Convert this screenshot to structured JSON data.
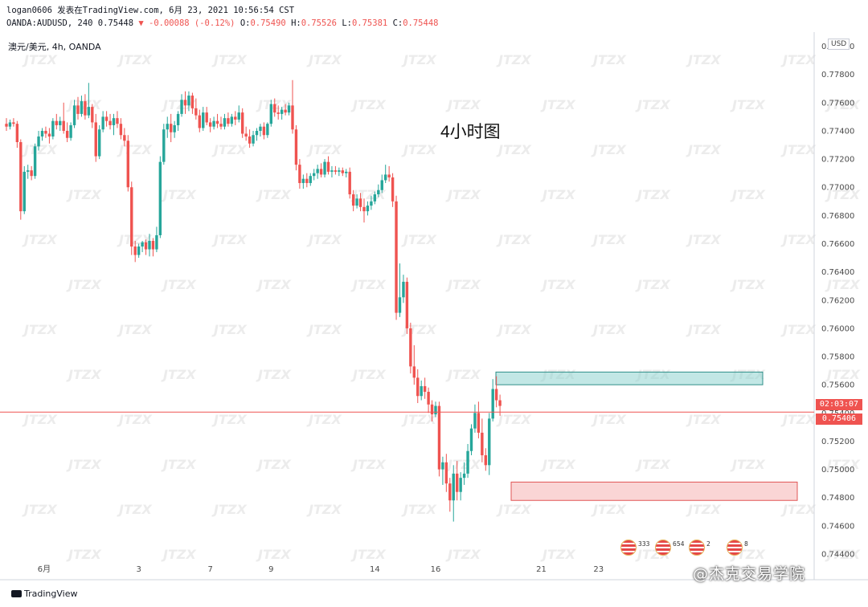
{
  "header": {
    "line1": "logan0606 发表在TradingView.com, 6月 23, 2021 10:56:54 CST",
    "line2_prefix": "OANDA:AUDUSD, 240 0.75448",
    "line2_change": "▼ -0.00088 (-0.12%)",
    "ohlc": [
      {
        "label": "O:",
        "value": "0.75490"
      },
      {
        "label": "H:",
        "value": "0.75526"
      },
      {
        "label": "L:",
        "value": "0.75381"
      },
      {
        "label": "C:",
        "value": "0.75448"
      }
    ]
  },
  "symbol_label": "澳元/美元, 4h, OANDA",
  "annotation": "4小时图",
  "currency_label": "USD",
  "countdown": "02:03:07",
  "last_price_label": "0.75406",
  "branding": {
    "tradingview": "TradingView",
    "academy": "@杰克交易学院"
  },
  "event_badges": [
    "333",
    "654",
    "2",
    "8"
  ],
  "colors": {
    "up": "#26a69a",
    "down": "#ef5350",
    "resistance_zone": "#8fd3cf",
    "support_zone": "#f6b9b9",
    "price_line": "#ef5350"
  },
  "chart_data": {
    "type": "candlestick",
    "symbol": "OANDA:AUDUSD",
    "timeframe": "240",
    "title": "澳元/美元, 4h, OANDA",
    "ylabel": "USD",
    "ylim": [
      0.744,
      0.781
    ],
    "y_ticks": [
      "0.78000",
      "0.77800",
      "0.77600",
      "0.77400",
      "0.77200",
      "0.77000",
      "0.76800",
      "0.76600",
      "0.76400",
      "0.76200",
      "0.76000",
      "0.75800",
      "0.75600",
      "0.75400",
      "0.75200",
      "0.75000",
      "0.74800",
      "0.74600",
      "0.74400"
    ],
    "x_ticks": [
      "6月",
      "3",
      "7",
      "9",
      "14",
      "16",
      "21",
      "23"
    ],
    "last_price": 0.75406,
    "zones": [
      {
        "kind": "resistance",
        "top": 0.7569,
        "bottom": 0.756,
        "from_index": 119,
        "to_index": 180
      },
      {
        "kind": "support",
        "top": 0.7491,
        "bottom": 0.7478,
        "from_index": 123,
        "to_index": 177
      }
    ],
    "candles": [
      {
        "o": 0.7745,
        "h": 0.7749,
        "l": 0.774,
        "c": 0.7743
      },
      {
        "o": 0.7743,
        "h": 0.7748,
        "l": 0.7741,
        "c": 0.7746
      },
      {
        "o": 0.7746,
        "h": 0.7749,
        "l": 0.7743,
        "c": 0.7745
      },
      {
        "o": 0.7745,
        "h": 0.7747,
        "l": 0.7728,
        "c": 0.7732
      },
      {
        "o": 0.7732,
        "h": 0.7734,
        "l": 0.7677,
        "c": 0.7683
      },
      {
        "o": 0.7683,
        "h": 0.7715,
        "l": 0.7681,
        "c": 0.7711
      },
      {
        "o": 0.7711,
        "h": 0.7716,
        "l": 0.7706,
        "c": 0.7712
      },
      {
        "o": 0.7712,
        "h": 0.7715,
        "l": 0.7705,
        "c": 0.7708
      },
      {
        "o": 0.7708,
        "h": 0.7731,
        "l": 0.7706,
        "c": 0.7729
      },
      {
        "o": 0.7729,
        "h": 0.774,
        "l": 0.7726,
        "c": 0.7736
      },
      {
        "o": 0.7736,
        "h": 0.7742,
        "l": 0.7733,
        "c": 0.774
      },
      {
        "o": 0.774,
        "h": 0.7743,
        "l": 0.7735,
        "c": 0.7738
      },
      {
        "o": 0.7738,
        "h": 0.7742,
        "l": 0.7731,
        "c": 0.7736
      },
      {
        "o": 0.7736,
        "h": 0.7749,
        "l": 0.7734,
        "c": 0.7747
      },
      {
        "o": 0.7747,
        "h": 0.7752,
        "l": 0.7741,
        "c": 0.7744
      },
      {
        "o": 0.7744,
        "h": 0.775,
        "l": 0.774,
        "c": 0.7747
      },
      {
        "o": 0.7747,
        "h": 0.776,
        "l": 0.7738,
        "c": 0.774
      },
      {
        "o": 0.774,
        "h": 0.7746,
        "l": 0.7732,
        "c": 0.7735
      },
      {
        "o": 0.7735,
        "h": 0.7746,
        "l": 0.7733,
        "c": 0.7744
      },
      {
        "o": 0.7744,
        "h": 0.7762,
        "l": 0.7742,
        "c": 0.7758
      },
      {
        "o": 0.7758,
        "h": 0.7764,
        "l": 0.7748,
        "c": 0.7752
      },
      {
        "o": 0.7752,
        "h": 0.7765,
        "l": 0.775,
        "c": 0.7761
      },
      {
        "o": 0.7761,
        "h": 0.7766,
        "l": 0.7748,
        "c": 0.7751
      },
      {
        "o": 0.7751,
        "h": 0.7774,
        "l": 0.7749,
        "c": 0.7757
      },
      {
        "o": 0.7757,
        "h": 0.7759,
        "l": 0.7742,
        "c": 0.7746
      },
      {
        "o": 0.7746,
        "h": 0.7752,
        "l": 0.7718,
        "c": 0.7722
      },
      {
        "o": 0.7722,
        "h": 0.7744,
        "l": 0.772,
        "c": 0.7741
      },
      {
        "o": 0.7741,
        "h": 0.7754,
        "l": 0.7739,
        "c": 0.775
      },
      {
        "o": 0.775,
        "h": 0.7754,
        "l": 0.7743,
        "c": 0.7747
      },
      {
        "o": 0.7747,
        "h": 0.7752,
        "l": 0.7741,
        "c": 0.7744
      },
      {
        "o": 0.7744,
        "h": 0.7752,
        "l": 0.7737,
        "c": 0.7749
      },
      {
        "o": 0.7749,
        "h": 0.7754,
        "l": 0.7742,
        "c": 0.7745
      },
      {
        "o": 0.7745,
        "h": 0.7749,
        "l": 0.7734,
        "c": 0.7737
      },
      {
        "o": 0.7737,
        "h": 0.7742,
        "l": 0.7729,
        "c": 0.7733
      },
      {
        "o": 0.7733,
        "h": 0.7737,
        "l": 0.7697,
        "c": 0.77
      },
      {
        "o": 0.77,
        "h": 0.7704,
        "l": 0.7652,
        "c": 0.7658
      },
      {
        "o": 0.7658,
        "h": 0.7662,
        "l": 0.7647,
        "c": 0.7652
      },
      {
        "o": 0.7652,
        "h": 0.766,
        "l": 0.765,
        "c": 0.7658
      },
      {
        "o": 0.7658,
        "h": 0.7662,
        "l": 0.7654,
        "c": 0.7661
      },
      {
        "o": 0.7661,
        "h": 0.7663,
        "l": 0.7652,
        "c": 0.7656
      },
      {
        "o": 0.7656,
        "h": 0.7667,
        "l": 0.7651,
        "c": 0.7662
      },
      {
        "o": 0.7662,
        "h": 0.7664,
        "l": 0.7651,
        "c": 0.7656
      },
      {
        "o": 0.7656,
        "h": 0.7672,
        "l": 0.7654,
        "c": 0.7666
      },
      {
        "o": 0.7666,
        "h": 0.7722,
        "l": 0.7664,
        "c": 0.7718
      },
      {
        "o": 0.7718,
        "h": 0.7745,
        "l": 0.7716,
        "c": 0.7741
      },
      {
        "o": 0.7741,
        "h": 0.775,
        "l": 0.7735,
        "c": 0.7745
      },
      {
        "o": 0.7745,
        "h": 0.7752,
        "l": 0.7732,
        "c": 0.7739
      },
      {
        "o": 0.7739,
        "h": 0.7747,
        "l": 0.7735,
        "c": 0.7744
      },
      {
        "o": 0.7744,
        "h": 0.7754,
        "l": 0.774,
        "c": 0.7752
      },
      {
        "o": 0.7752,
        "h": 0.7766,
        "l": 0.775,
        "c": 0.7762
      },
      {
        "o": 0.7762,
        "h": 0.7768,
        "l": 0.7752,
        "c": 0.7758
      },
      {
        "o": 0.7758,
        "h": 0.7768,
        "l": 0.7754,
        "c": 0.7765
      },
      {
        "o": 0.7765,
        "h": 0.7767,
        "l": 0.7752,
        "c": 0.7756
      },
      {
        "o": 0.7756,
        "h": 0.7763,
        "l": 0.7748,
        "c": 0.7751
      },
      {
        "o": 0.7751,
        "h": 0.7755,
        "l": 0.7739,
        "c": 0.7742
      },
      {
        "o": 0.7742,
        "h": 0.7757,
        "l": 0.774,
        "c": 0.7753
      },
      {
        "o": 0.7753,
        "h": 0.7757,
        "l": 0.7744,
        "c": 0.7746
      },
      {
        "o": 0.7746,
        "h": 0.7749,
        "l": 0.7739,
        "c": 0.7743
      },
      {
        "o": 0.7743,
        "h": 0.775,
        "l": 0.7741,
        "c": 0.7747
      },
      {
        "o": 0.7747,
        "h": 0.7752,
        "l": 0.7742,
        "c": 0.7745
      },
      {
        "o": 0.7745,
        "h": 0.775,
        "l": 0.7741,
        "c": 0.7743
      },
      {
        "o": 0.7743,
        "h": 0.7752,
        "l": 0.7741,
        "c": 0.7749
      },
      {
        "o": 0.7749,
        "h": 0.7753,
        "l": 0.7743,
        "c": 0.7745
      },
      {
        "o": 0.7745,
        "h": 0.7752,
        "l": 0.7743,
        "c": 0.775
      },
      {
        "o": 0.775,
        "h": 0.7754,
        "l": 0.7744,
        "c": 0.7748
      },
      {
        "o": 0.7748,
        "h": 0.7758,
        "l": 0.7746,
        "c": 0.7753
      },
      {
        "o": 0.7753,
        "h": 0.7756,
        "l": 0.7735,
        "c": 0.7738
      },
      {
        "o": 0.7738,
        "h": 0.7743,
        "l": 0.7733,
        "c": 0.7736
      },
      {
        "o": 0.7736,
        "h": 0.7741,
        "l": 0.7728,
        "c": 0.7731
      },
      {
        "o": 0.7731,
        "h": 0.774,
        "l": 0.7729,
        "c": 0.7737
      },
      {
        "o": 0.7737,
        "h": 0.7742,
        "l": 0.7733,
        "c": 0.774
      },
      {
        "o": 0.774,
        "h": 0.7745,
        "l": 0.7736,
        "c": 0.7743
      },
      {
        "o": 0.7743,
        "h": 0.7746,
        "l": 0.7734,
        "c": 0.7737
      },
      {
        "o": 0.7737,
        "h": 0.7746,
        "l": 0.7735,
        "c": 0.7745
      },
      {
        "o": 0.7745,
        "h": 0.7762,
        "l": 0.7743,
        "c": 0.7759
      },
      {
        "o": 0.7759,
        "h": 0.7763,
        "l": 0.775,
        "c": 0.7753
      },
      {
        "o": 0.7753,
        "h": 0.7758,
        "l": 0.7748,
        "c": 0.7752
      },
      {
        "o": 0.7752,
        "h": 0.7757,
        "l": 0.7748,
        "c": 0.7755
      },
      {
        "o": 0.7755,
        "h": 0.7759,
        "l": 0.7751,
        "c": 0.7753
      },
      {
        "o": 0.7753,
        "h": 0.776,
        "l": 0.7751,
        "c": 0.7758
      },
      {
        "o": 0.7758,
        "h": 0.7776,
        "l": 0.7738,
        "c": 0.7741
      },
      {
        "o": 0.7741,
        "h": 0.7744,
        "l": 0.7712,
        "c": 0.7716
      },
      {
        "o": 0.7716,
        "h": 0.772,
        "l": 0.7699,
        "c": 0.7703
      },
      {
        "o": 0.7703,
        "h": 0.7709,
        "l": 0.7699,
        "c": 0.7706
      },
      {
        "o": 0.7706,
        "h": 0.771,
        "l": 0.77,
        "c": 0.7703
      },
      {
        "o": 0.7703,
        "h": 0.771,
        "l": 0.7701,
        "c": 0.7708
      },
      {
        "o": 0.7708,
        "h": 0.7713,
        "l": 0.7705,
        "c": 0.771
      },
      {
        "o": 0.771,
        "h": 0.7716,
        "l": 0.7706,
        "c": 0.7713
      },
      {
        "o": 0.7713,
        "h": 0.7717,
        "l": 0.7707,
        "c": 0.7709
      },
      {
        "o": 0.7709,
        "h": 0.772,
        "l": 0.7707,
        "c": 0.7718
      },
      {
        "o": 0.7718,
        "h": 0.7722,
        "l": 0.7709,
        "c": 0.7711
      },
      {
        "o": 0.7711,
        "h": 0.7715,
        "l": 0.7707,
        "c": 0.7712
      },
      {
        "o": 0.7712,
        "h": 0.7715,
        "l": 0.7709,
        "c": 0.7711
      },
      {
        "o": 0.7711,
        "h": 0.7714,
        "l": 0.7708,
        "c": 0.7712
      },
      {
        "o": 0.7712,
        "h": 0.7714,
        "l": 0.7708,
        "c": 0.771
      },
      {
        "o": 0.771,
        "h": 0.7713,
        "l": 0.7707,
        "c": 0.7711
      },
      {
        "o": 0.7711,
        "h": 0.7714,
        "l": 0.7692,
        "c": 0.7695
      },
      {
        "o": 0.7695,
        "h": 0.7698,
        "l": 0.7683,
        "c": 0.7687
      },
      {
        "o": 0.7687,
        "h": 0.7695,
        "l": 0.7685,
        "c": 0.7692
      },
      {
        "o": 0.7692,
        "h": 0.7696,
        "l": 0.7683,
        "c": 0.7686
      },
      {
        "o": 0.7686,
        "h": 0.7692,
        "l": 0.7675,
        "c": 0.7683
      },
      {
        "o": 0.7683,
        "h": 0.769,
        "l": 0.768,
        "c": 0.7687
      },
      {
        "o": 0.7687,
        "h": 0.7694,
        "l": 0.7684,
        "c": 0.769
      },
      {
        "o": 0.769,
        "h": 0.7697,
        "l": 0.7688,
        "c": 0.7695
      },
      {
        "o": 0.7695,
        "h": 0.7702,
        "l": 0.7693,
        "c": 0.7698
      },
      {
        "o": 0.7698,
        "h": 0.7709,
        "l": 0.7696,
        "c": 0.7705
      },
      {
        "o": 0.7705,
        "h": 0.7716,
        "l": 0.7703,
        "c": 0.7709
      },
      {
        "o": 0.7709,
        "h": 0.7715,
        "l": 0.7704,
        "c": 0.7707
      },
      {
        "o": 0.7707,
        "h": 0.771,
        "l": 0.7686,
        "c": 0.769
      },
      {
        "o": 0.769,
        "h": 0.7694,
        "l": 0.7606,
        "c": 0.7611
      },
      {
        "o": 0.7611,
        "h": 0.7646,
        "l": 0.7608,
        "c": 0.7622
      },
      {
        "o": 0.7622,
        "h": 0.7638,
        "l": 0.7618,
        "c": 0.7633
      },
      {
        "o": 0.7633,
        "h": 0.7636,
        "l": 0.7596,
        "c": 0.76
      },
      {
        "o": 0.76,
        "h": 0.7604,
        "l": 0.7568,
        "c": 0.7573
      },
      {
        "o": 0.7573,
        "h": 0.7588,
        "l": 0.756,
        "c": 0.7565
      },
      {
        "o": 0.7565,
        "h": 0.7571,
        "l": 0.7547,
        "c": 0.7552
      },
      {
        "o": 0.7552,
        "h": 0.7563,
        "l": 0.7549,
        "c": 0.7559
      },
      {
        "o": 0.7559,
        "h": 0.7565,
        "l": 0.755,
        "c": 0.7555
      },
      {
        "o": 0.7555,
        "h": 0.7558,
        "l": 0.754,
        "c": 0.7546
      },
      {
        "o": 0.7546,
        "h": 0.7549,
        "l": 0.7534,
        "c": 0.7539
      },
      {
        "o": 0.7539,
        "h": 0.7548,
        "l": 0.7537,
        "c": 0.7545
      },
      {
        "o": 0.7545,
        "h": 0.7548,
        "l": 0.7495,
        "c": 0.75
      },
      {
        "o": 0.75,
        "h": 0.7509,
        "l": 0.7489,
        "c": 0.7505
      },
      {
        "o": 0.7505,
        "h": 0.7511,
        "l": 0.7484,
        "c": 0.749
      },
      {
        "o": 0.749,
        "h": 0.7494,
        "l": 0.747,
        "c": 0.7478
      },
      {
        "o": 0.7478,
        "h": 0.7503,
        "l": 0.7463,
        "c": 0.7497
      },
      {
        "o": 0.7497,
        "h": 0.7506,
        "l": 0.7478,
        "c": 0.7484
      },
      {
        "o": 0.7484,
        "h": 0.7498,
        "l": 0.7478,
        "c": 0.7494
      },
      {
        "o": 0.7494,
        "h": 0.7505,
        "l": 0.7489,
        "c": 0.7497
      },
      {
        "o": 0.7497,
        "h": 0.7518,
        "l": 0.7494,
        "c": 0.7513
      },
      {
        "o": 0.7513,
        "h": 0.7532,
        "l": 0.751,
        "c": 0.7529
      },
      {
        "o": 0.7529,
        "h": 0.7546,
        "l": 0.7526,
        "c": 0.754
      },
      {
        "o": 0.754,
        "h": 0.7548,
        "l": 0.7522,
        "c": 0.7526
      },
      {
        "o": 0.7526,
        "h": 0.7536,
        "l": 0.7505,
        "c": 0.751
      },
      {
        "o": 0.751,
        "h": 0.7515,
        "l": 0.7499,
        "c": 0.7503
      },
      {
        "o": 0.7503,
        "h": 0.754,
        "l": 0.7496,
        "c": 0.7536
      },
      {
        "o": 0.7536,
        "h": 0.7564,
        "l": 0.7534,
        "c": 0.7557
      },
      {
        "o": 0.7557,
        "h": 0.7566,
        "l": 0.7544,
        "c": 0.7549
      },
      {
        "o": 0.7549,
        "h": 0.7553,
        "l": 0.7538,
        "c": 0.7545
      }
    ]
  }
}
